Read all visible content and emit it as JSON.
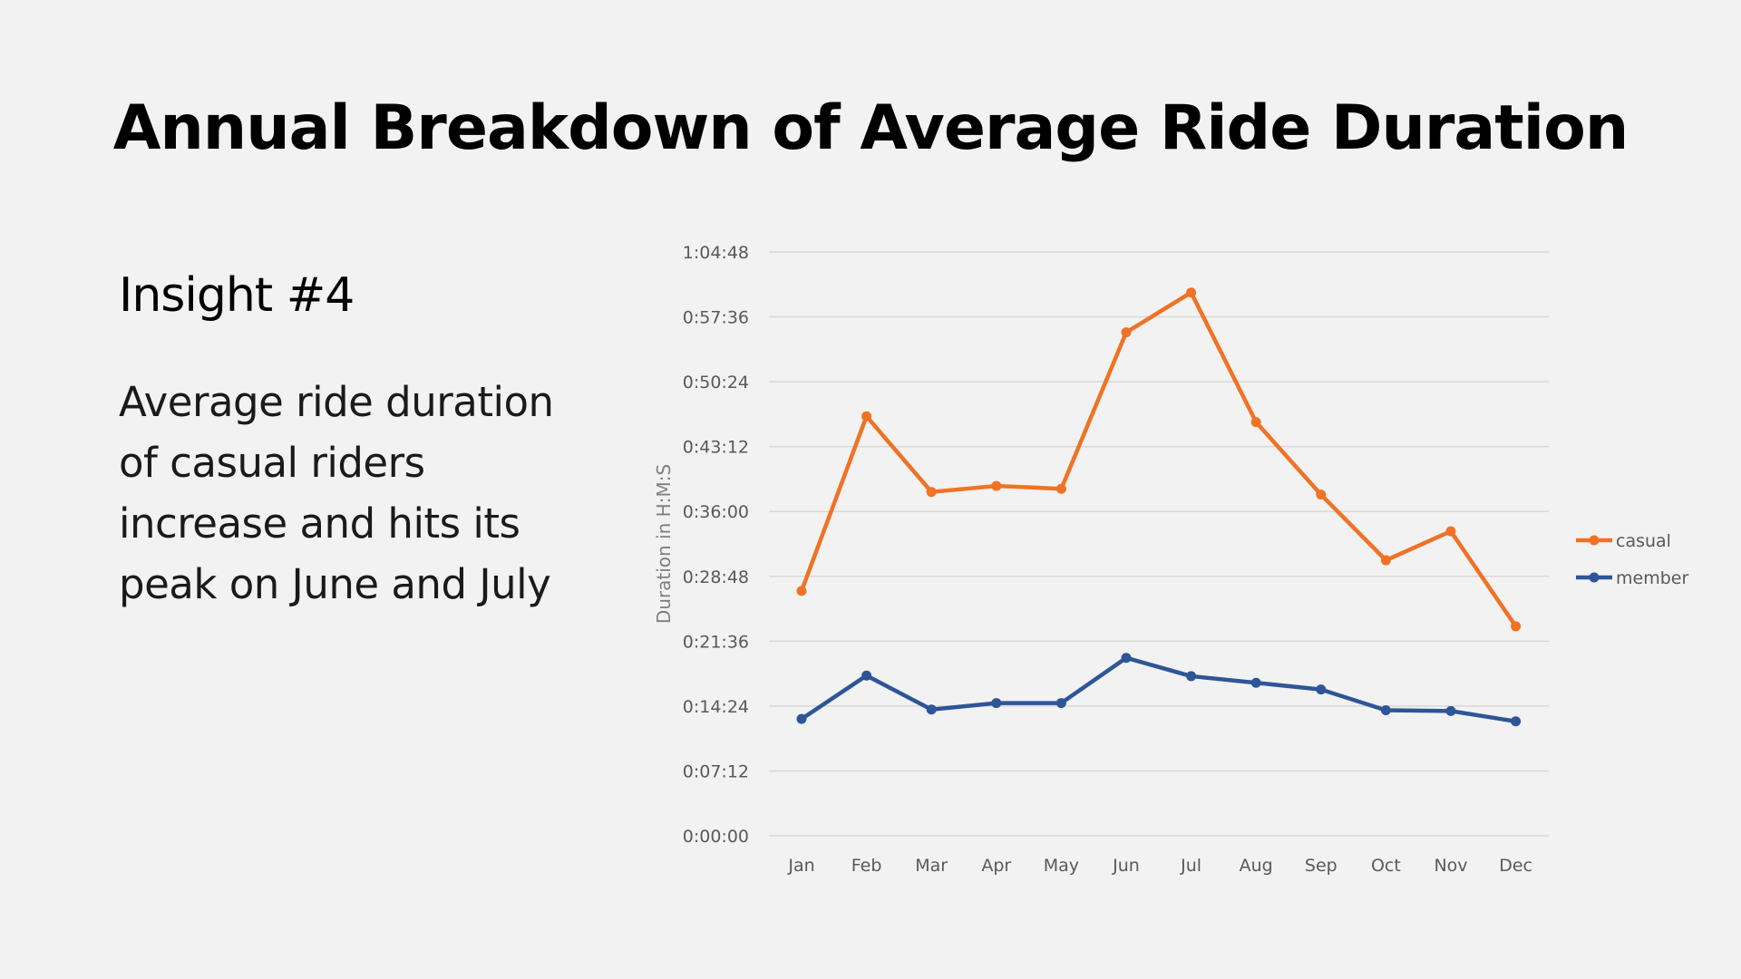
{
  "slide": {
    "title": "Annual Breakdown of Average Ride Duration",
    "insight_heading": "Insight #4",
    "insight_body": "Average ride duration of casual riders increase and hits its peak on June and July"
  },
  "chart_data": {
    "type": "line",
    "title": "",
    "xlabel": "",
    "ylabel": "Duration in H:M:S",
    "categories": [
      "Jan",
      "Feb",
      "Mar",
      "Apr",
      "May",
      "Jun",
      "Jul",
      "Aug",
      "Sep",
      "Oct",
      "Nov",
      "Dec"
    ],
    "y_ticks": [
      "0:00:00",
      "0:07:12",
      "0:14:24",
      "0:21:36",
      "0:28:48",
      "0:36:00",
      "0:43:12",
      "0:50:24",
      "0:57:36",
      "1:04:48"
    ],
    "ylim": [
      "0:00:00",
      "1:04:48"
    ],
    "grid": true,
    "legend_position": "right",
    "series": [
      {
        "name": "casual",
        "color": "#f07225",
        "values": [
          "0:27:11",
          "0:46:34",
          "0:38:10",
          "0:38:50",
          "0:38:31",
          "0:55:53",
          "1:00:18",
          "0:45:55",
          "0:37:52",
          "0:30:35",
          "0:33:48",
          "0:23:15"
        ]
      },
      {
        "name": "member",
        "color": "#2e5597",
        "values": [
          "0:12:58",
          "0:17:47",
          "0:14:01",
          "0:14:44",
          "0:14:44",
          "0:19:45",
          "0:17:43",
          "0:16:59",
          "0:16:14",
          "0:13:56",
          "0:13:51",
          "0:12:42"
        ]
      }
    ],
    "colors": {
      "gridline": "#d9d9d9",
      "axis_text": "#595959",
      "axis_label": "#7f7f7f"
    }
  }
}
